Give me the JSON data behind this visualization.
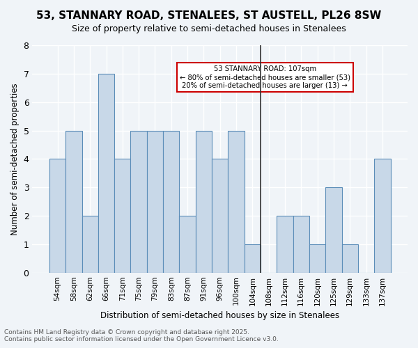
{
  "title": "53, STANNARY ROAD, STENALEES, ST AUSTELL, PL26 8SW",
  "subtitle": "Size of property relative to semi-detached houses in Stenalees",
  "xlabel": "Distribution of semi-detached houses by size in Stenalees",
  "ylabel": "Number of semi-detached properties",
  "categories": [
    "54sqm",
    "58sqm",
    "62sqm",
    "66sqm",
    "71sqm",
    "75sqm",
    "79sqm",
    "83sqm",
    "87sqm",
    "91sqm",
    "96sqm",
    "100sqm",
    "104sqm",
    "108sqm",
    "112sqm",
    "116sqm",
    "120sqm",
    "125sqm",
    "129sqm",
    "133sqm",
    "137sqm"
  ],
  "values": [
    4,
    5,
    2,
    7,
    4,
    5,
    5,
    5,
    2,
    5,
    4,
    5,
    1,
    0,
    2,
    2,
    1,
    3,
    1,
    0,
    4
  ],
  "bar_color": "#c8d8e8",
  "bar_edge_color": "#5b8db8",
  "highlight_index": 13,
  "vline_label": "53 STANNARY ROAD: 107sqm",
  "vline_note1": "← 80% of semi-detached houses are smaller (53)",
  "vline_note2": "20% of semi-detached houses are larger (13) →",
  "vline_color": "#333333",
  "box_edge_color": "#cc0000",
  "box_face_color": "#ffffff",
  "ylim": [
    0,
    8
  ],
  "yticks": [
    0,
    1,
    2,
    3,
    4,
    5,
    6,
    7,
    8
  ],
  "background_color": "#f0f4f8",
  "grid_color": "#ffffff",
  "footer1": "Contains HM Land Registry data © Crown copyright and database right 2025.",
  "footer2": "Contains public sector information licensed under the Open Government Licence v3.0."
}
